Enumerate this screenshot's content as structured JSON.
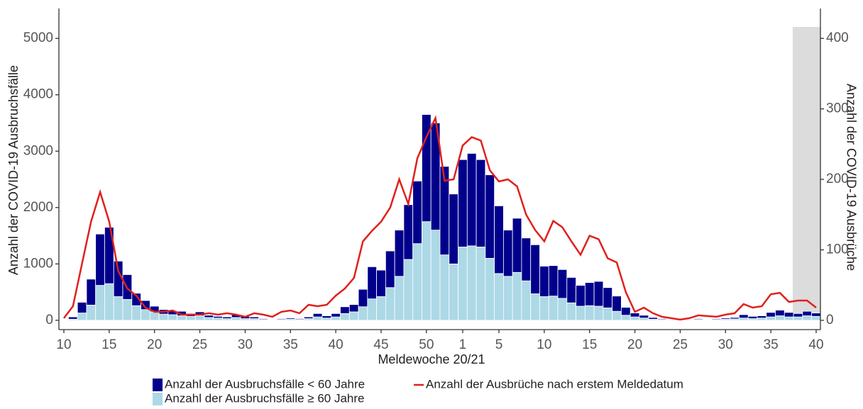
{
  "chart_data": {
    "type": "bar-line",
    "x_label": "Meldewoche 20/21",
    "y_label": "Anzahl der COVID-19 Ausbruchsfälle",
    "y2_label": "Anzahl der COVID-19 Ausbrüche",
    "categories": [
      "10",
      null,
      null,
      null,
      null,
      "15",
      null,
      null,
      null,
      null,
      "20",
      null,
      null,
      null,
      null,
      "25",
      null,
      null,
      null,
      null,
      "30",
      null,
      null,
      null,
      null,
      "35",
      null,
      null,
      null,
      null,
      "40",
      null,
      null,
      null,
      null,
      "45",
      null,
      null,
      null,
      null,
      "50",
      null,
      null,
      null,
      "1",
      null,
      null,
      null,
      "5",
      null,
      null,
      null,
      null,
      "10",
      null,
      null,
      null,
      null,
      "15",
      null,
      null,
      null,
      null,
      "20",
      null,
      null,
      null,
      null,
      "25",
      null,
      null,
      null,
      null,
      "30",
      null,
      null,
      null,
      null,
      "35",
      null,
      null,
      null,
      null,
      "40"
    ],
    "series": [
      {
        "name": "Anzahl der Ausbruchsfälle < 60 Jahre",
        "color": "#00008b",
        "type": "bar",
        "values": [
          0,
          40,
          190,
          460,
          910,
          1000,
          630,
          440,
          220,
          160,
          100,
          80,
          70,
          80,
          50,
          70,
          40,
          30,
          30,
          50,
          40,
          30,
          15,
          10,
          15,
          20,
          15,
          30,
          60,
          40,
          60,
          120,
          130,
          310,
          570,
          470,
          650,
          820,
          970,
          1110,
          1900,
          1900,
          1570,
          1240,
          1550,
          1640,
          1550,
          1480,
          1200,
          820,
          960,
          760,
          870,
          540,
          540,
          510,
          450,
          370,
          410,
          440,
          360,
          270,
          140,
          70,
          50,
          30,
          15,
          10,
          5,
          10,
          15,
          10,
          15,
          20,
          25,
          60,
          40,
          40,
          80,
          100,
          80,
          60,
          80,
          60
        ]
      },
      {
        "name": "Anzahl der Ausbruchsfälle ≥ 60 Jahre",
        "color": "#add8e6",
        "type": "bar",
        "values": [
          0,
          20,
          130,
          270,
          620,
          650,
          420,
          370,
          260,
          190,
          150,
          110,
          100,
          80,
          70,
          80,
          50,
          40,
          30,
          50,
          30,
          30,
          15,
          10,
          15,
          20,
          15,
          30,
          60,
          40,
          60,
          120,
          150,
          240,
          380,
          420,
          580,
          780,
          1080,
          1360,
          1750,
          1600,
          1160,
          1000,
          1300,
          1320,
          1300,
          1100,
          830,
          780,
          850,
          700,
          470,
          420,
          430,
          390,
          310,
          250,
          260,
          250,
          220,
          160,
          90,
          60,
          40,
          20,
          15,
          10,
          5,
          10,
          15,
          10,
          15,
          20,
          25,
          40,
          30,
          40,
          60,
          80,
          60,
          60,
          80,
          70
        ]
      },
      {
        "name": "Anzahl der Ausbrüche nach erstem Meldedatum",
        "color": "#e0201c",
        "type": "line",
        "axis": "y2",
        "values": [
          3,
          20,
          80,
          140,
          182,
          140,
          70,
          45,
          35,
          18,
          12,
          12,
          14,
          8,
          8,
          8,
          10,
          8,
          10,
          8,
          5,
          10,
          8,
          5,
          12,
          14,
          10,
          22,
          20,
          22,
          35,
          45,
          60,
          112,
          127,
          140,
          160,
          200,
          165,
          230,
          260,
          287,
          198,
          200,
          248,
          260,
          255,
          213,
          197,
          200,
          190,
          150,
          128,
          112,
          141,
          132,
          112,
          93,
          120,
          115,
          88,
          82,
          40,
          12,
          18,
          10,
          5,
          3,
          1,
          3,
          7,
          6,
          5,
          8,
          10,
          23,
          18,
          20,
          37,
          39,
          26,
          28,
          28,
          18
        ]
      }
    ],
    "ylim": [
      -165,
      5530
    ],
    "yticks": [
      0,
      1000,
      2000,
      3000,
      4000,
      5000
    ],
    "y2lim": [
      -13.2,
      442.4
    ],
    "y2ticks": [
      0,
      100,
      200,
      300,
      400
    ],
    "legend": "bottom"
  }
}
